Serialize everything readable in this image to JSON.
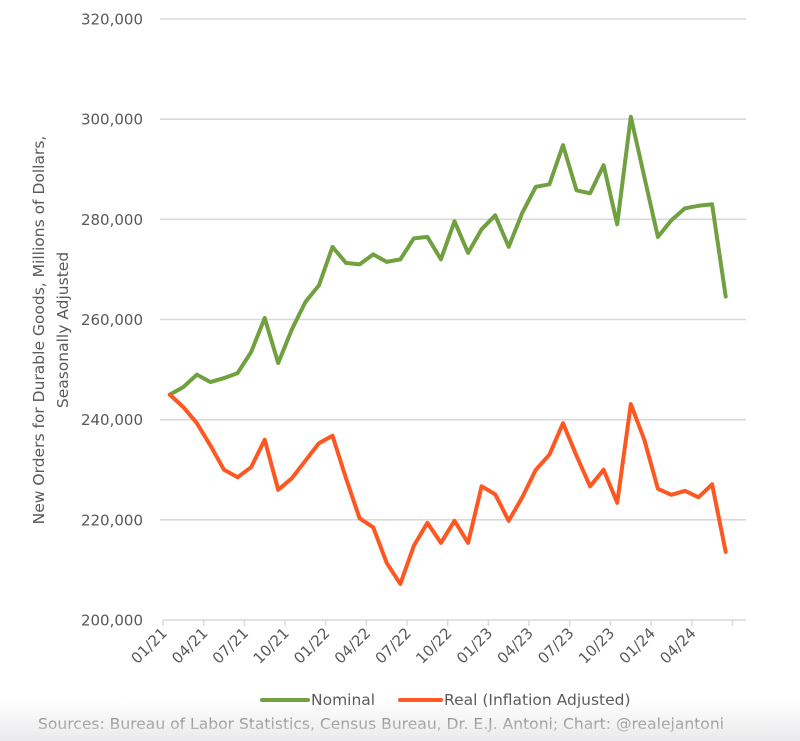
{
  "chart_data": {
    "type": "line",
    "title": "",
    "xlabel": "",
    "ylabel_lines": [
      "New Orders for Durable Goods, Millions of Dollars,",
      "Seasonally Adjusted"
    ],
    "ylim": [
      200000,
      320000
    ],
    "yticks": [
      200000,
      220000,
      240000,
      260000,
      280000,
      300000,
      320000
    ],
    "ytick_labels": [
      "200,000",
      "220,000",
      "240,000",
      "260,000",
      "280,000",
      "300,000",
      "320,000"
    ],
    "grid": true,
    "legend_position": "bottom",
    "xtick_labels": [
      "01/21",
      "04/21",
      "07/21",
      "10/21",
      "01/22",
      "04/22",
      "07/22",
      "10/22",
      "01/23",
      "04/23",
      "07/23",
      "10/23",
      "01/24",
      "04/24"
    ],
    "x_months": [
      "01/21",
      "02/21",
      "03/21",
      "04/21",
      "05/21",
      "06/21",
      "07/21",
      "08/21",
      "09/21",
      "10/21",
      "11/21",
      "12/21",
      "01/22",
      "02/22",
      "03/22",
      "04/22",
      "05/22",
      "06/22",
      "07/22",
      "08/22",
      "09/22",
      "10/22",
      "11/22",
      "12/22",
      "01/23",
      "02/23",
      "03/23",
      "04/23",
      "05/23",
      "06/23",
      "07/23",
      "08/23",
      "09/23",
      "10/23",
      "11/23",
      "12/23",
      "01/24",
      "02/24",
      "03/24",
      "04/24",
      "05/24",
      "06/24"
    ],
    "series": [
      {
        "name": "Nominal",
        "color": "#70A040",
        "values": [
          245000,
          246500,
          249000,
          247500,
          248300,
          249300,
          253500,
          260300,
          251300,
          258000,
          263500,
          266800,
          274500,
          271300,
          271000,
          273000,
          271500,
          272000,
          276200,
          276500,
          272000,
          279600,
          273300,
          278000,
          280800,
          274500,
          281300,
          286500,
          287000,
          294800,
          285800,
          285200,
          290800,
          279000,
          300500,
          288500,
          276500,
          279800,
          282200,
          282700,
          283000,
          264600
        ]
      },
      {
        "name": "Real (Inflation Adjusted)",
        "color": "#FF5722",
        "values": [
          245000,
          242500,
          239300,
          234800,
          230000,
          228500,
          230500,
          236000,
          226000,
          228300,
          231800,
          235300,
          236800,
          228300,
          220300,
          218500,
          211400,
          207200,
          214800,
          219400,
          215400,
          219800,
          215400,
          226700,
          225100,
          219800,
          224500,
          230000,
          233000,
          239300,
          232800,
          226700,
          230000,
          223400,
          243100,
          236000,
          226200,
          225000,
          225800,
          224500,
          227100,
          213600
        ]
      }
    ],
    "source": "Sources: Bureau of Labor Statistics, Census Bureau, Dr. E.J. Antoni; Chart: @realejantoni"
  },
  "colors": {
    "grid": "#D9D9D9",
    "text": "#595959"
  }
}
